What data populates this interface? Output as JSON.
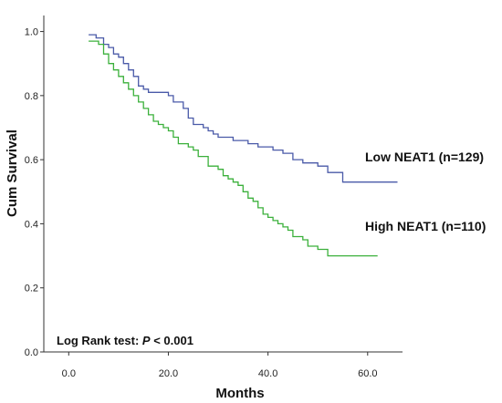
{
  "chart_data": {
    "type": "line",
    "step": true,
    "xlabel": "Months",
    "ylabel": "Cum Survival",
    "xlim": [
      -5,
      67
    ],
    "ylim": [
      0,
      1.05
    ],
    "x_ticks": [
      0,
      20,
      40,
      60
    ],
    "x_tick_labels": [
      "0.0",
      "20.0",
      "40.0",
      "60.0"
    ],
    "y_ticks": [
      0,
      0.2,
      0.4,
      0.6,
      0.8,
      1.0
    ],
    "y_tick_labels": [
      "0.0",
      "0.2",
      "0.4",
      "0.6",
      "0.8",
      "1.0"
    ],
    "grid": false,
    "series": [
      {
        "name": "Low NEAT1 (n=129)",
        "color": "#4a5aa8",
        "x": [
          4,
          5.5,
          7,
          8,
          9,
          10,
          11,
          12,
          13,
          14,
          15,
          16,
          17,
          20,
          21,
          23,
          24,
          25,
          27,
          28,
          29,
          30,
          33,
          36,
          38,
          41,
          43,
          45,
          47,
          50,
          52,
          55,
          66
        ],
        "y": [
          0.99,
          0.98,
          0.96,
          0.95,
          0.93,
          0.92,
          0.9,
          0.88,
          0.86,
          0.83,
          0.82,
          0.81,
          0.81,
          0.8,
          0.78,
          0.76,
          0.73,
          0.71,
          0.7,
          0.69,
          0.68,
          0.67,
          0.66,
          0.65,
          0.64,
          0.63,
          0.62,
          0.6,
          0.59,
          0.58,
          0.56,
          0.53,
          0.53
        ]
      },
      {
        "name": "High NEAT1 (n=110)",
        "color": "#3bb03b",
        "x": [
          4,
          6,
          7,
          8,
          9,
          10,
          11,
          12,
          13,
          14,
          15,
          16,
          17,
          18,
          19,
          20,
          21,
          22,
          24,
          25,
          26,
          28,
          30,
          31,
          32,
          33,
          34,
          35,
          36,
          37,
          38,
          39,
          40,
          41,
          42,
          43,
          44,
          45,
          47,
          48,
          50,
          52,
          62
        ],
        "y": [
          0.97,
          0.96,
          0.93,
          0.9,
          0.88,
          0.86,
          0.84,
          0.82,
          0.8,
          0.78,
          0.76,
          0.74,
          0.72,
          0.71,
          0.7,
          0.69,
          0.67,
          0.65,
          0.64,
          0.63,
          0.61,
          0.58,
          0.57,
          0.55,
          0.54,
          0.53,
          0.52,
          0.5,
          0.48,
          0.47,
          0.45,
          0.43,
          0.42,
          0.41,
          0.4,
          0.39,
          0.38,
          0.36,
          0.35,
          0.33,
          0.32,
          0.3,
          0.3
        ]
      }
    ],
    "annotation_prefix": "Log Rank test: ",
    "annotation_symbol": "P",
    "annotation_suffix": " < 0.001"
  }
}
